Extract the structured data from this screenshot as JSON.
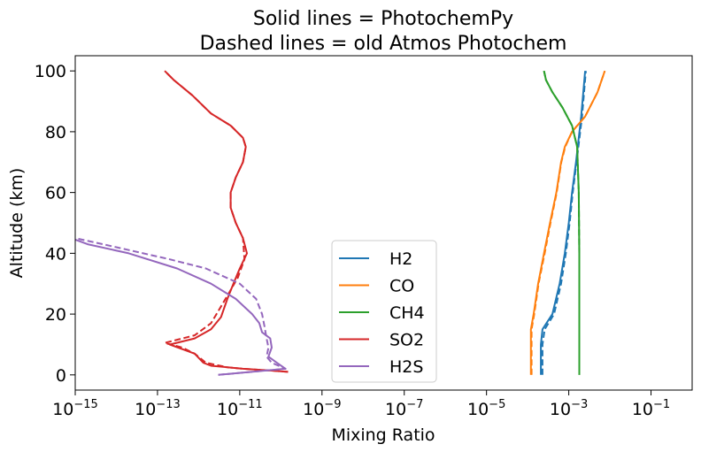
{
  "chart_data": {
    "type": "line",
    "title": "Solid lines = PhotochemPy",
    "subtitle": "Dashed lines = old Atmos Photochem",
    "xlabel": "Mixing Ratio",
    "ylabel": "Altitude (km)",
    "xscale": "log",
    "xlim": [
      1e-15,
      1
    ],
    "ylim": [
      -5,
      105
    ],
    "xticks": [
      {
        "value": 1e-15,
        "base": "10",
        "exp": "−15"
      },
      {
        "value": 1e-13,
        "base": "10",
        "exp": "−13"
      },
      {
        "value": 1e-11,
        "base": "10",
        "exp": "−11"
      },
      {
        "value": 1e-09,
        "base": "10",
        "exp": "−9"
      },
      {
        "value": 1e-07,
        "base": "10",
        "exp": "−7"
      },
      {
        "value": 1e-05,
        "base": "10",
        "exp": "−5"
      },
      {
        "value": 0.001,
        "base": "10",
        "exp": "−3"
      },
      {
        "value": 0.1,
        "base": "10",
        "exp": "−1"
      }
    ],
    "yticks": [
      {
        "value": 0,
        "label": "0"
      },
      {
        "value": 20,
        "label": "20"
      },
      {
        "value": 40,
        "label": "40"
      },
      {
        "value": 60,
        "label": "60"
      },
      {
        "value": 80,
        "label": "80"
      },
      {
        "value": 100,
        "label": "100"
      }
    ],
    "grid": false,
    "legend_position": "bottom-center",
    "series": [
      {
        "name": "H2",
        "color": "#1f77b4",
        "style": "solid",
        "x": [
          0.00021,
          0.00021,
          0.00023,
          0.0004,
          0.0006,
          0.0008,
          0.001,
          0.0012,
          0.0015,
          0.002,
          0.0025
        ],
        "y": [
          0,
          10,
          15,
          20,
          30,
          40,
          50,
          60,
          70,
          85,
          100
        ]
      },
      {
        "name": "H2",
        "color": "#1f77b4",
        "style": "dashed",
        "x": [
          0.00023,
          0.00023,
          0.00026,
          0.00044,
          0.00065,
          0.00085,
          0.00105,
          0.00125,
          0.00155,
          0.0021,
          0.0026
        ],
        "y": [
          0,
          10,
          15,
          20,
          30,
          40,
          50,
          60,
          70,
          85,
          100
        ]
      },
      {
        "name": "CO",
        "color": "#ff7f0e",
        "style": "solid",
        "x": [
          0.00012,
          0.00012,
          0.00014,
          0.00018,
          0.00025,
          0.00035,
          0.0005,
          0.00065,
          0.0008,
          0.0012,
          0.0025,
          0.005,
          0.0075
        ],
        "y": [
          0,
          15,
          20,
          30,
          40,
          50,
          60,
          70,
          75,
          80,
          85,
          93,
          100
        ]
      },
      {
        "name": "CO",
        "color": "#ff7f0e",
        "style": "dashed",
        "x": [
          0.000125,
          0.000125,
          0.000145,
          0.000185,
          0.00026,
          0.00036,
          0.00051,
          0.00066,
          0.00082,
          0.0012,
          0.0025,
          0.005,
          0.0075
        ],
        "y": [
          0,
          15,
          20,
          30,
          40,
          50,
          60,
          70,
          75,
          80,
          85,
          93,
          100
        ]
      },
      {
        "name": "CH4",
        "color": "#2ca02c",
        "style": "solid",
        "x": [
          0.0018,
          0.0018,
          0.00175,
          0.0016,
          0.0012,
          0.0007,
          0.0004,
          0.00028,
          0.00025
        ],
        "y": [
          0,
          40,
          60,
          75,
          82,
          88,
          93,
          97,
          100
        ]
      },
      {
        "name": "CH4",
        "color": "#2ca02c",
        "style": "dashed",
        "x": [
          0.0018,
          0.0018,
          0.00175,
          0.0016,
          0.0012,
          0.0007,
          0.0004,
          0.00028,
          0.00025
        ],
        "y": [
          0,
          40,
          60,
          75,
          82,
          88,
          93,
          97,
          100
        ]
      },
      {
        "name": "SO2",
        "color": "#d62728",
        "style": "solid",
        "x": [
          1.5e-10,
          5e-11,
          1.2e-11,
          5e-12,
          2e-12,
          1.3e-12,
          8e-13,
          2e-13,
          8e-13,
          2e-12,
          3.5e-12,
          5e-12,
          7e-12,
          1e-11,
          1.5e-11,
          1.2e-11,
          8e-12,
          6e-12,
          6e-12,
          8e-12,
          1.2e-11,
          1.4e-11,
          1.2e-11,
          6e-12,
          2e-12,
          7e-13,
          2.5e-13,
          1.5e-13
        ],
        "y": [
          1,
          1.5,
          2,
          2.5,
          3,
          4,
          7,
          10,
          12,
          15,
          19,
          25,
          30,
          35,
          40,
          45,
          50,
          55,
          60,
          65,
          70,
          75,
          78,
          82,
          86,
          92,
          97,
          100
        ]
      },
      {
        "name": "SO2",
        "color": "#d62728",
        "style": "dashed",
        "x": [
          1.5e-10,
          5e-11,
          1.2e-11,
          5e-12,
          1.5e-12,
          8e-13,
          4e-13,
          1.5e-13,
          8e-13,
          2e-12,
          3e-12,
          4.5e-12,
          9e-12,
          1.3e-11,
          1.2e-11,
          8e-12,
          6e-12,
          6e-12,
          8e-12,
          1.2e-11,
          1.4e-11,
          1.2e-11,
          6e-12,
          2e-12,
          7e-13,
          2.5e-13,
          1.5e-13
        ],
        "y": [
          1,
          1.5,
          2,
          2.5,
          4,
          7,
          9,
          10.5,
          13,
          17,
          21,
          25,
          32,
          38,
          45,
          50,
          55,
          60,
          65,
          70,
          75,
          78,
          82,
          86,
          92,
          97,
          100
        ]
      },
      {
        "name": "H2S",
        "color": "#9467bd",
        "style": "solid",
        "x": [
          3e-12,
          1.3e-10,
          8e-11,
          5e-11,
          6e-11,
          5.5e-11,
          3.5e-11,
          3e-11,
          2e-11,
          8e-12,
          2e-12,
          3e-13,
          2e-14,
          2e-15,
          1e-15
        ],
        "y": [
          0,
          2,
          4,
          6,
          9,
          12,
          14,
          17,
          20,
          25,
          30,
          35,
          40,
          43,
          44.5
        ]
      },
      {
        "name": "H2S",
        "color": "#9467bd",
        "style": "dashed",
        "x": [
          3e-12,
          1.3e-10,
          6e-11,
          4.5e-11,
          5e-11,
          4.5e-11,
          4e-11,
          3.5e-11,
          2.5e-11,
          1e-11,
          1.5e-12,
          2e-13,
          1e-14,
          1e-15
        ],
        "y": [
          0,
          2,
          4,
          6,
          9,
          12,
          16,
          20,
          25,
          30,
          35,
          38,
          42,
          45
        ]
      }
    ],
    "legend": [
      {
        "label": "H2",
        "color": "#1f77b4"
      },
      {
        "label": "CO",
        "color": "#ff7f0e"
      },
      {
        "label": "CH4",
        "color": "#2ca02c"
      },
      {
        "label": "SO2",
        "color": "#d62728"
      },
      {
        "label": "H2S",
        "color": "#9467bd"
      }
    ]
  }
}
